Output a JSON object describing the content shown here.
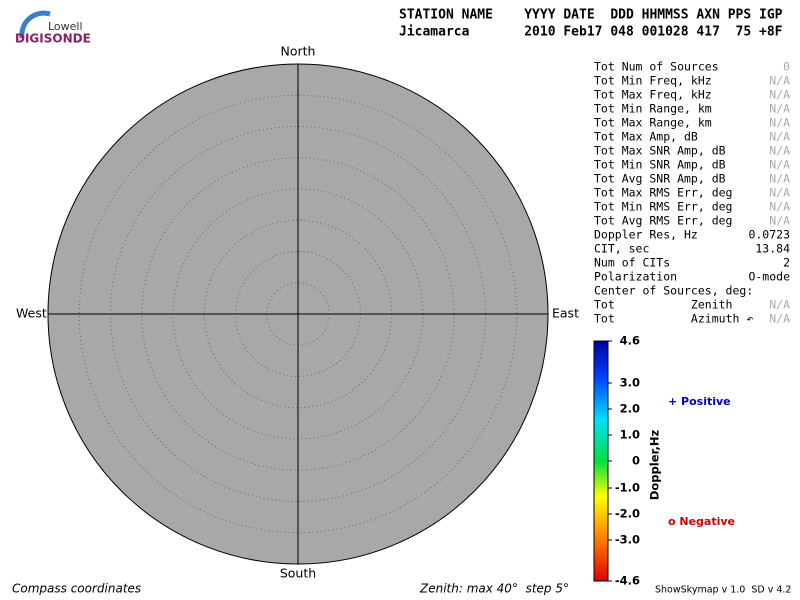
{
  "logo": {
    "brand": "Lowell",
    "product": "DIGISONDE"
  },
  "header": {
    "line1": "STATION NAME    YYYY DATE  DDD HHMMSS AXN PPS IGP",
    "line2": "Jicamarca       2010 Feb17 048 001028 417  75 +8F"
  },
  "compass": {
    "north": "North",
    "south": "South",
    "west": "West",
    "east": "East"
  },
  "table": {
    "rows": [
      {
        "label": "Tot Num of Sources",
        "value": "0",
        "color": "#aaaaaa"
      },
      {
        "label": "Tot Min Freq, kHz",
        "value": "N/A",
        "color": "#aaaaaa"
      },
      {
        "label": "Tot Max Freq, kHz",
        "value": "N/A",
        "color": "#aaaaaa"
      },
      {
        "label": "Tot Min Range, km",
        "value": "N/A",
        "color": "#aaaaaa"
      },
      {
        "label": "Tot Max Range, km",
        "value": "N/A",
        "color": "#aaaaaa"
      },
      {
        "label": "Tot Max Amp, dB",
        "value": "N/A",
        "color": "#aaaaaa"
      },
      {
        "label": "Tot Max SNR Amp, dB",
        "value": "N/A",
        "color": "#aaaaaa"
      },
      {
        "label": "Tot Min SNR Amp, dB",
        "value": "N/A",
        "color": "#aaaaaa"
      },
      {
        "label": "Tot Avg SNR Amp, dB",
        "value": "N/A",
        "color": "#aaaaaa"
      },
      {
        "label": "Tot Max RMS Err, deg",
        "value": "N/A",
        "color": "#aaaaaa"
      },
      {
        "label": "Tot Min RMS Err, deg",
        "value": "N/A",
        "color": "#aaaaaa"
      },
      {
        "label": "Tot Avg RMS Err, deg",
        "value": "N/A",
        "color": "#aaaaaa"
      },
      {
        "label": "Doppler Res, Hz",
        "value": "0.0723",
        "color": "#000000"
      },
      {
        "label": "CIT, sec",
        "value": "13.84",
        "color": "#000000"
      },
      {
        "label": "Num of CITs",
        "value": "2",
        "color": "#000000"
      },
      {
        "label": "Polarization",
        "value": "O-mode",
        "color": "#000000"
      },
      {
        "label": "Center of Sources, deg:",
        "value": null,
        "color": "#000000"
      },
      {
        "label": "Tot           Zenith",
        "value": "N/A",
        "color": "#aaaaaa"
      },
      {
        "label": "Tot           Azimuth ↶",
        "value": "N/A",
        "color": "#aaaaaa"
      }
    ]
  },
  "colorbar": {
    "title": "Doppler,Hz",
    "ticks": [
      "4.6",
      "3.0",
      "2.0",
      "1.0",
      "0",
      "-1.0",
      "-2.0",
      "-3.0",
      "-4.6"
    ]
  },
  "legend": {
    "positive": "+ Positive",
    "negative": "o Negative"
  },
  "footer": {
    "left": "Compass coordinates",
    "center": "Zenith: max 40°  step 5°",
    "right": "ShowSkymap v 1.0  SD v 4.2"
  }
}
